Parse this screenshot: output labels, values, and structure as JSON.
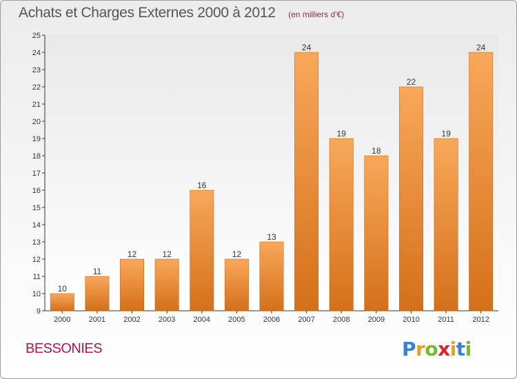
{
  "header": {
    "title": "Achats et Charges Externes 2000 à 2012",
    "subtitle": "(en milliers d'€)"
  },
  "footer": {
    "commune": "BESSONIES",
    "logo_letters": [
      "P",
      "r",
      "o",
      "x",
      "i",
      "t",
      "i"
    ],
    "logo_colors": [
      "#3a7fd0",
      "#e9a020",
      "#78b82a",
      "#d8242c",
      "#e9a020",
      "#3a7fd0",
      "#78b82a"
    ]
  },
  "chart_data": {
    "type": "bar",
    "title": "Achats et Charges Externes 2000 à 2012",
    "subtitle": "(en milliers d'€)",
    "categories": [
      "2000",
      "2001",
      "2002",
      "2003",
      "2004",
      "2005",
      "2006",
      "2007",
      "2008",
      "2009",
      "2010",
      "2011",
      "2012"
    ],
    "values": [
      10,
      11,
      12,
      12,
      16,
      12,
      13,
      24,
      19,
      18,
      22,
      19,
      24
    ],
    "ylim": [
      9,
      25
    ],
    "yticks": [
      9,
      10,
      11,
      12,
      13,
      14,
      15,
      16,
      17,
      18,
      19,
      20,
      21,
      22,
      23,
      24,
      25
    ],
    "xlabel": "",
    "ylabel": "",
    "grid": false,
    "bar_color_top": "#f8a85a",
    "bar_color_bottom": "#d4701a"
  }
}
